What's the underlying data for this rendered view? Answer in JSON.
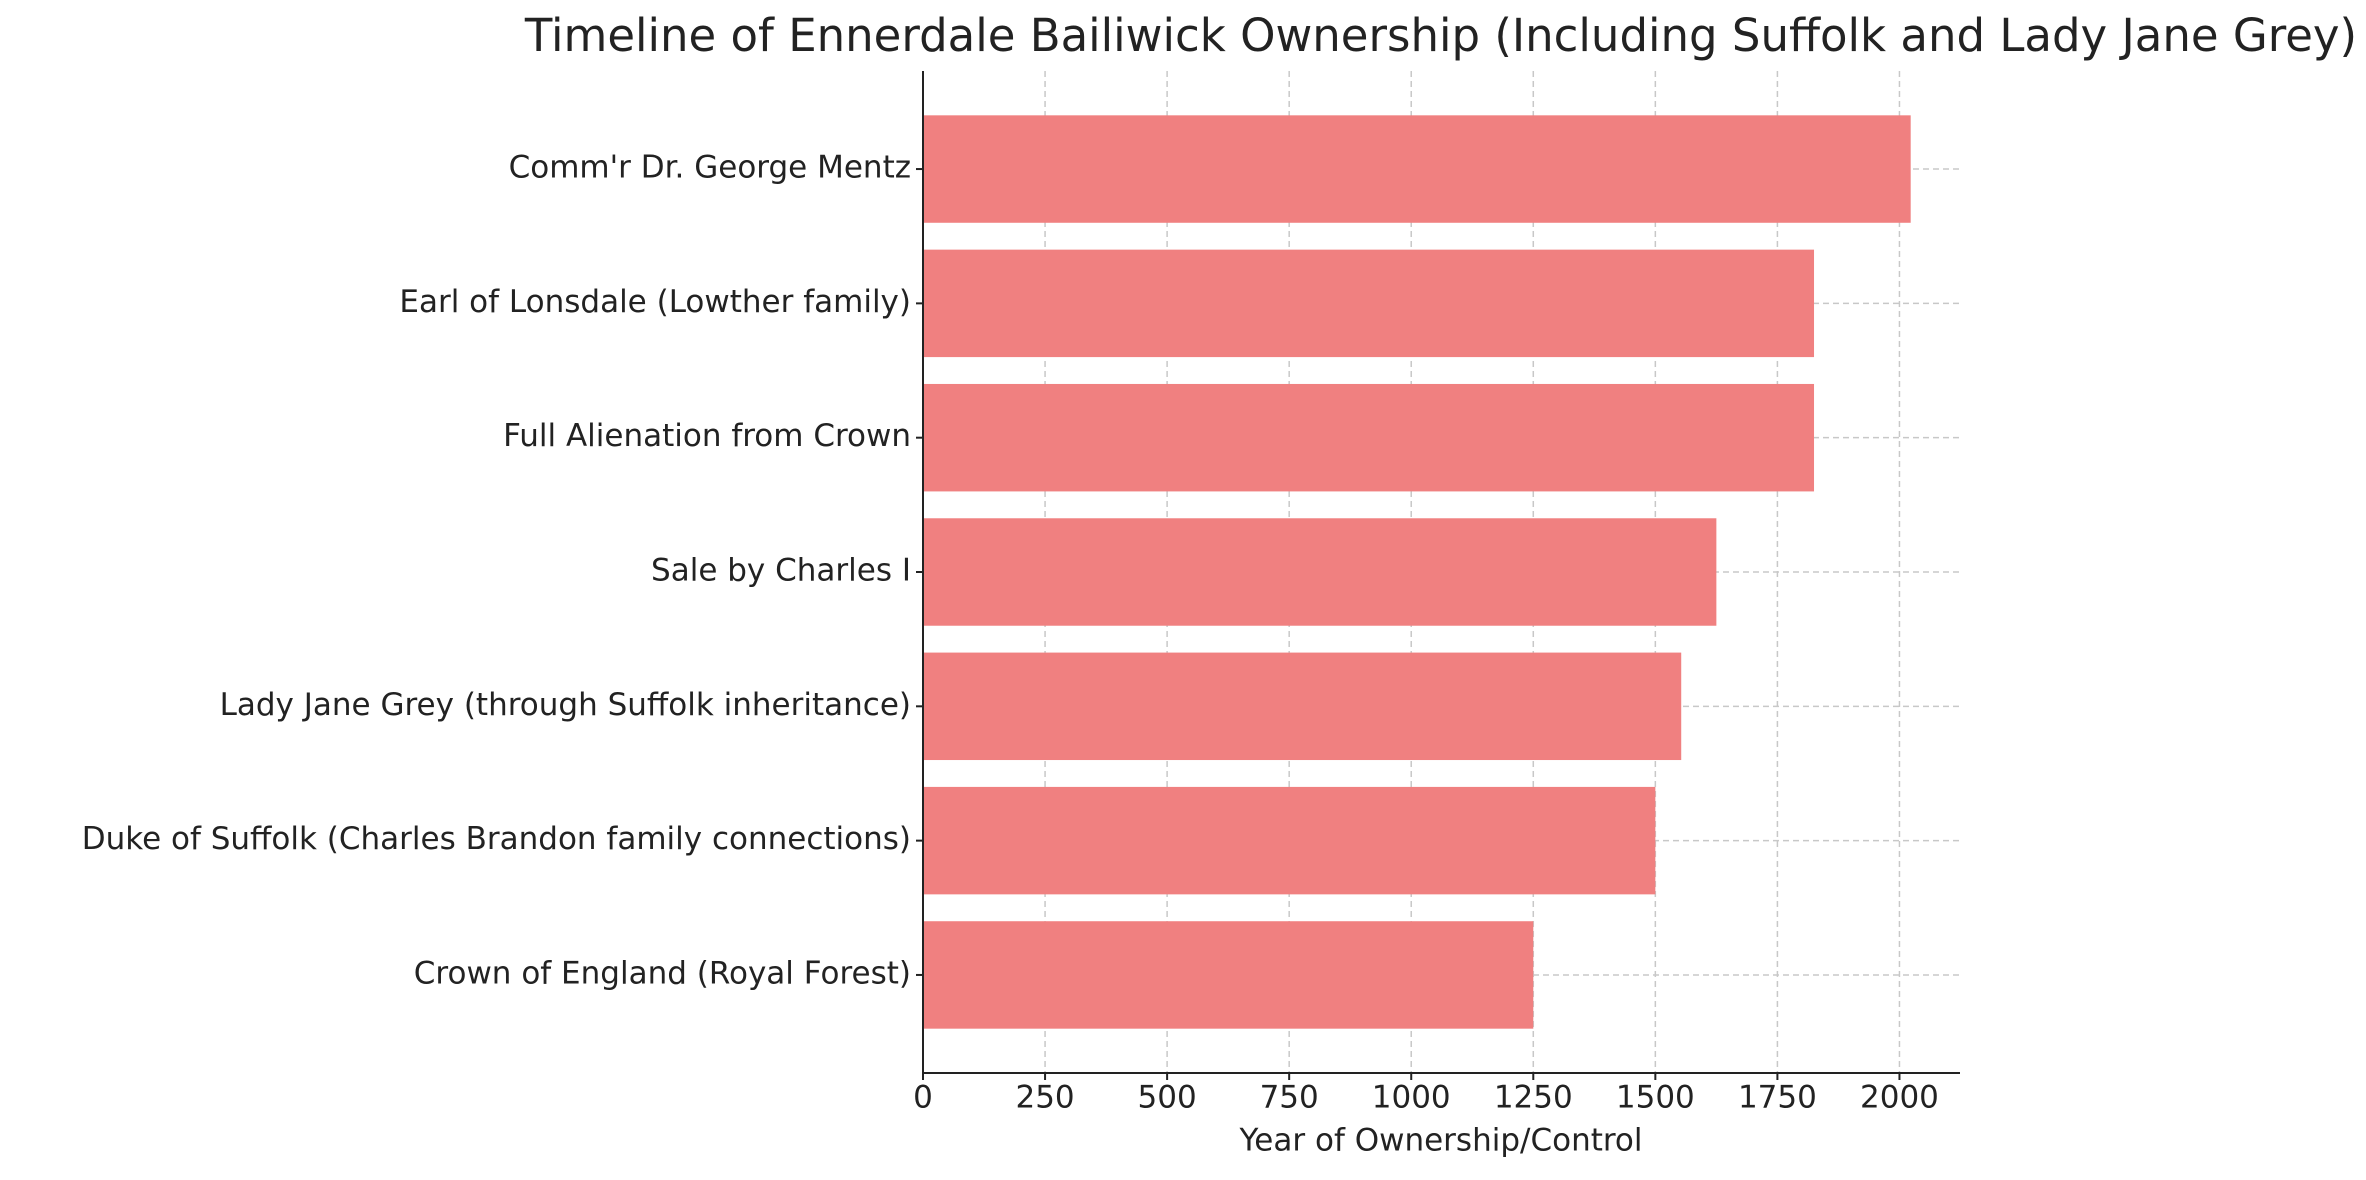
{
  "chart_data": {
    "type": "bar",
    "orientation": "horizontal",
    "title": "Timeline of Ennerdale Bailiwick Ownership (Including Suffolk and Lady Jane Grey)",
    "x_label": "Year of Ownership/Control",
    "categories": [
      "Crown of England (Royal Forest)",
      "Duke of Suffolk (Charles Brandon family connections)",
      "Lady Jane Grey (through Suffolk inheritance)",
      "Sale by Charles I",
      "Full Alienation from Crown",
      "Earl of Lonsdale (Lowther family)",
      "Comm'r Dr. George Mentz"
    ],
    "values": [
      1250,
      1500,
      1553,
      1625,
      1825,
      1825,
      2023
    ],
    "color": "#f08080",
    "xlim": [
      0,
      2124
    ],
    "xticks": [
      0,
      250,
      500,
      750,
      1000,
      1250,
      1500,
      1750,
      2000
    ],
    "grid": true
  }
}
